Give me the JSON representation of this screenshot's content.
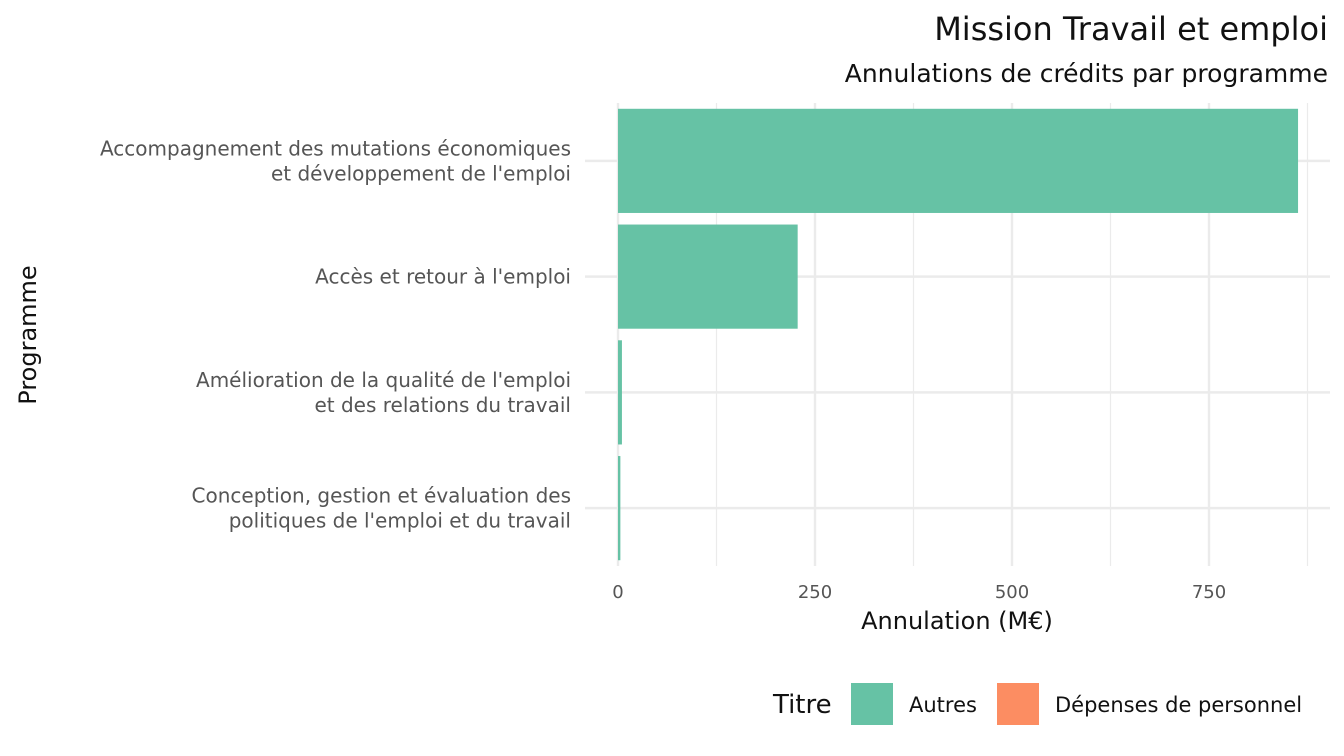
{
  "chart_data": {
    "type": "bar",
    "orientation": "horizontal",
    "title": "Mission Travail et emploi",
    "subtitle": "Annulations de crédits par programme",
    "xlabel": "Annulation (M€)",
    "ylabel": "Programme",
    "xlim": [
      0,
      880
    ],
    "xticks": [
      0,
      250,
      500,
      750
    ],
    "grid": true,
    "categories": [
      [
        "Accompagnement des mutations économiques",
        "et développement de l'emploi"
      ],
      [
        "Accès et retour à l'emploi"
      ],
      [
        "Amélioration de la qualité de l'emploi",
        "et des relations du travail"
      ],
      [
        "Conception, gestion et évaluation des",
        "politiques de l'emploi et du travail"
      ]
    ],
    "series": [
      {
        "name": "Autres",
        "color": "#66c2a5",
        "values": [
          863,
          228,
          5,
          3
        ]
      },
      {
        "name": "Dépenses de personnel",
        "color": "#fc8d62",
        "values": [
          0,
          0,
          0,
          0
        ]
      }
    ],
    "legend": {
      "title": "Titre",
      "position": "bottom-right"
    }
  }
}
